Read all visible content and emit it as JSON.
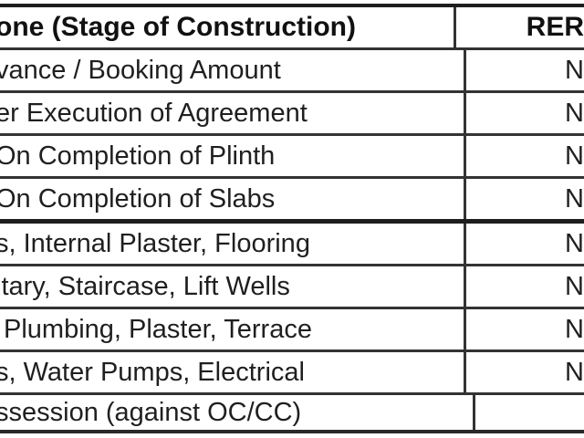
{
  "table": {
    "header": {
      "stage_col": "one (Stage of Construction)",
      "rera_col": "RER"
    },
    "rows": [
      {
        "stage": "vance / Booking Amount",
        "rera": "N"
      },
      {
        "stage": "er Execution of Agreement",
        "rera": "N"
      },
      {
        "stage": "On Completion of Plinth",
        "rera": "N"
      },
      {
        "stage": "On Completion of Slabs",
        "rera": "N"
      },
      {
        "stage": "s, Internal Plaster, Flooring",
        "rera": "N"
      },
      {
        "stage": "itary, Staircase, Lift Wells",
        "rera": "N"
      },
      {
        "stage": "Plumbing, Plaster, Terrace",
        "rera": "N"
      },
      {
        "stage": "s, Water Pumps, Electrical",
        "rera": "N"
      },
      {
        "stage": "ssession (against OC/CC)",
        "rera": ""
      }
    ],
    "colors": {
      "grid": "#333333",
      "heavy_border": "#1e1e1e",
      "text": "#1f1f1f",
      "background": "#ffffff"
    }
  }
}
